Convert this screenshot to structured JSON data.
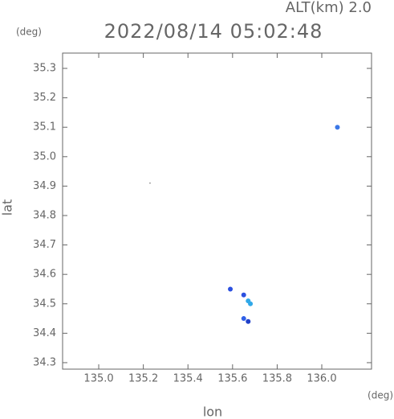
{
  "chart_data": {
    "type": "scatter",
    "header": "ALT(km) 2.0",
    "title": "2022/08/14 05:02:48",
    "y_unit": "(deg)",
    "x_unit": "(deg)",
    "ylabel": "lat",
    "xlabel": "lon",
    "x": [
      136.07,
      135.23,
      135.59,
      135.65,
      135.67,
      135.68,
      135.65,
      135.67
    ],
    "values": [
      35.1,
      34.91,
      34.55,
      34.53,
      34.51,
      34.5,
      34.45,
      34.44
    ],
    "colors": [
      "#3b78e7",
      "#555555",
      "#2b50e0",
      "#2b50e0",
      "#30a8e8",
      "#30a8e8",
      "#3060e8",
      "#2040c8"
    ],
    "xlim": [
      134.838,
      136.223
    ],
    "ylim": [
      34.278,
      35.352
    ],
    "xticks": [
      {
        "value": 135.0,
        "label": "135.0"
      },
      135.2,
      135.4,
      135.6,
      135.8,
      {
        "value": 136.0,
        "label": "136.0"
      }
    ],
    "yticks": [
      34.3,
      34.4,
      34.5,
      34.6,
      34.7,
      34.8,
      34.9,
      {
        "value": 35.0,
        "label": "35.0"
      },
      35.1,
      35.2,
      35.3
    ]
  }
}
